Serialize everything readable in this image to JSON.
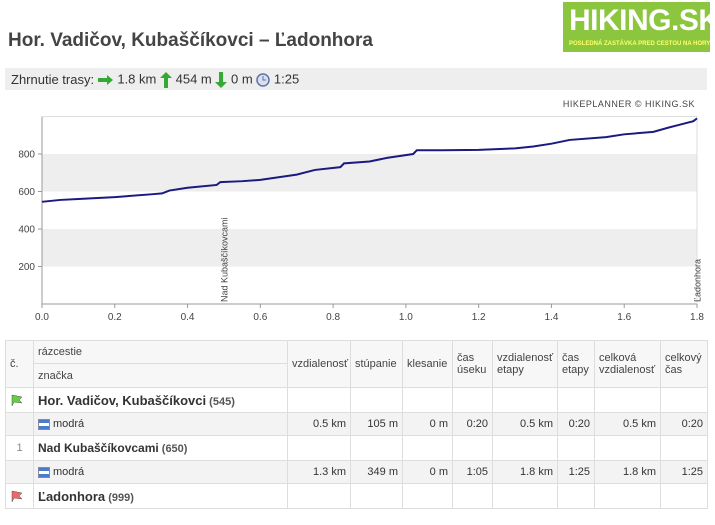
{
  "header": {
    "title": "Hor. Vadičov, Kubaščíkovci – Ľadonhora",
    "logo": "HIKING.SK",
    "tagline": "POSLEDNÁ ZASTÁVKA PRED CESTOU NA HORY"
  },
  "summary": {
    "label": "Zhrnutie trasy:",
    "distance": "1.8 km",
    "ascent": "454 m",
    "descent": "0 m",
    "time": "1:25"
  },
  "chart_data": {
    "type": "line",
    "credit": "HIKEPLANNER © HIKING.SK",
    "color": "#1a1a80",
    "x": [
      0,
      0.05,
      0.1,
      0.2,
      0.3,
      0.33,
      0.35,
      0.4,
      0.48,
      0.49,
      0.55,
      0.6,
      0.7,
      0.75,
      0.82,
      0.83,
      0.9,
      0.95,
      1.02,
      1.03,
      1.1,
      1.2,
      1.3,
      1.35,
      1.4,
      1.45,
      1.55,
      1.6,
      1.68,
      1.72,
      1.75,
      1.79,
      1.8
    ],
    "values": [
      545,
      555,
      560,
      570,
      585,
      590,
      605,
      620,
      635,
      650,
      655,
      662,
      690,
      715,
      730,
      750,
      760,
      780,
      800,
      820,
      820,
      822,
      830,
      840,
      855,
      875,
      890,
      905,
      918,
      940,
      955,
      975,
      990
    ],
    "xlim": [
      0,
      1.8
    ],
    "xticks": [
      {
        "value": 0,
        "label": "0.0"
      },
      0.2,
      0.4,
      0.6,
      0.8,
      {
        "value": 1,
        "label": "1.0"
      },
      1.2,
      1.4,
      1.6,
      1.8
    ],
    "ylim": [
      0,
      1000
    ],
    "yticks": [
      200,
      400,
      600,
      800
    ],
    "grid": "bands",
    "annotations": [
      {
        "x": 0.5,
        "text": "Nad Kubaščíkovcami"
      },
      {
        "x": 1.8,
        "text": "Ľadonhora"
      }
    ]
  },
  "table": {
    "headers": {
      "number": "č.",
      "junction": "rázcestie",
      "mark": "značka",
      "distance": "vzdialenosť",
      "ascent": "stúpanie",
      "descent": "klesanie",
      "time": "čas úseku",
      "stage_distance": "vzdialenosť etapy",
      "stage_time": "čas etapy",
      "total_distance": "celková vzdialenosť",
      "total_time": "celkový čas"
    },
    "points": [
      {
        "name": "Hor. Vadičov, Kubaščíkovci",
        "elevation": "(545)"
      },
      {
        "number": "1",
        "name": "Nad Kubaščíkovcami",
        "elevation": "(650)"
      },
      {
        "name": "Ľadonhora",
        "elevation": "(999)"
      }
    ],
    "segments": [
      {
        "mark": "modrá",
        "distance": "0.5 km",
        "ascent": "105 m",
        "descent": "0 m",
        "time": "0:20",
        "stage_distance": "0.5 km",
        "stage_time": "0:20",
        "total_distance": "0.5 km",
        "total_time": "0:20"
      },
      {
        "mark": "modrá",
        "distance": "1.3 km",
        "ascent": "349 m",
        "descent": "0 m",
        "time": "1:05",
        "stage_distance": "1.8 km",
        "stage_time": "1:25",
        "total_distance": "1.8 km",
        "total_time": "1:25"
      }
    ]
  }
}
